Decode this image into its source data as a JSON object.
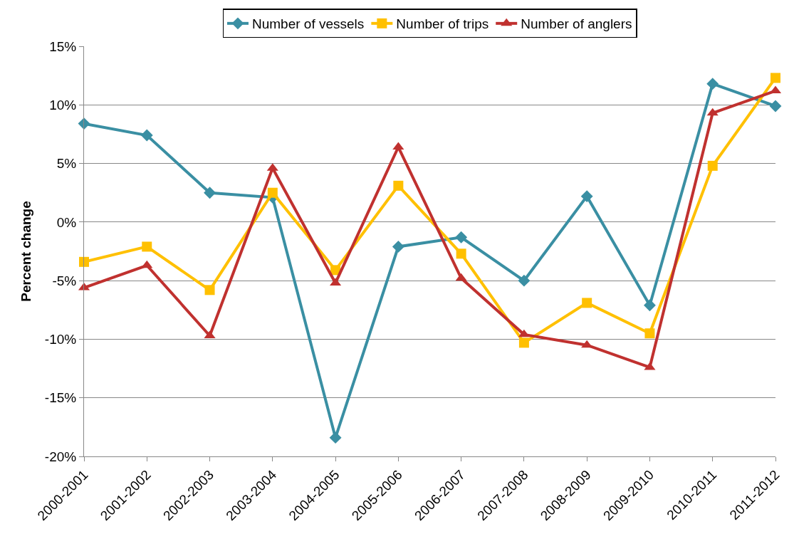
{
  "chart_data": {
    "type": "line",
    "ylabel": "Percent change",
    "categories": [
      "2000-2001",
      "2001-2002",
      "2002-2003",
      "2003-2004",
      "2004-2005",
      "2005-2006",
      "2006-2007",
      "2007-2008",
      "2008-2009",
      "2009-2010",
      "2010-2011",
      "2011-2012"
    ],
    "series": [
      {
        "name": "Number of vessels",
        "color": "#3a8fa3",
        "marker": "diamond",
        "values": [
          8.4,
          7.4,
          2.5,
          2.1,
          -18.4,
          -2.1,
          -1.3,
          -5.0,
          2.2,
          -7.1,
          11.8,
          9.9
        ]
      },
      {
        "name": "Number of trips",
        "color": "#ffc000",
        "marker": "square",
        "values": [
          -3.4,
          -2.1,
          -5.8,
          2.5,
          -4.1,
          3.1,
          -2.7,
          -10.3,
          -6.9,
          -9.5,
          4.8,
          12.3
        ]
      },
      {
        "name": "Number of anglers",
        "color": "#c0312f",
        "marker": "triangle",
        "values": [
          -5.6,
          -3.7,
          -9.7,
          4.6,
          -5.2,
          6.4,
          -4.8,
          -9.6,
          -10.5,
          -12.4,
          9.3,
          11.2
        ]
      }
    ],
    "ylim": [
      -20,
      15
    ],
    "yticks": [
      {
        "value": -20,
        "label": "-20%"
      },
      {
        "value": -15,
        "label": "-15%"
      },
      {
        "value": -10,
        "label": "-10%"
      },
      {
        "value": -5,
        "label": "-5%"
      },
      {
        "value": 0,
        "label": "0%"
      },
      {
        "value": 5,
        "label": "5%"
      },
      {
        "value": 10,
        "label": "10%"
      },
      {
        "value": 15,
        "label": "15%"
      }
    ],
    "grid": "y",
    "legend": "top",
    "line_style": "solid"
  }
}
